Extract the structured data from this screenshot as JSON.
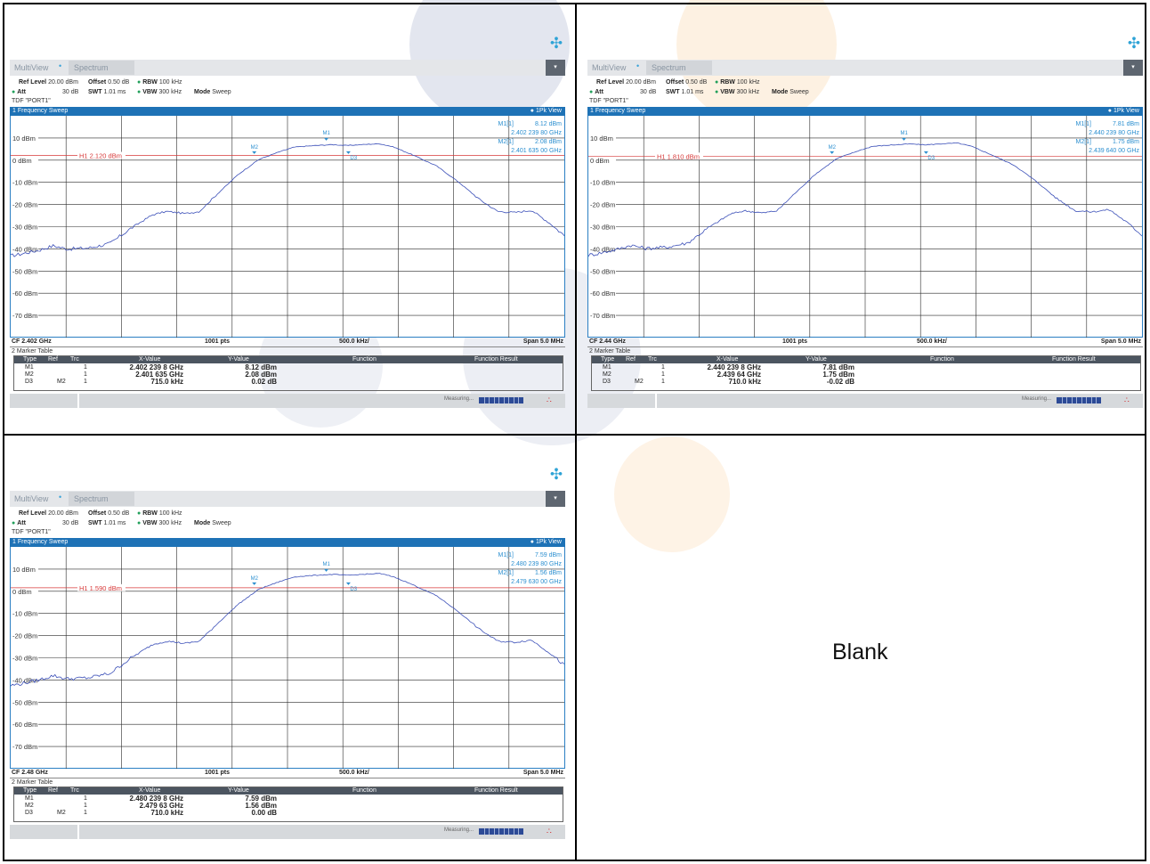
{
  "blank_label": "Blank",
  "colors": {
    "trace": "#3b4fb8",
    "marker": "#2b8fd0",
    "hline": "#d83a3a",
    "header_bar": "#1e72b6",
    "grid": "#2a2a2a"
  },
  "panels": [
    {
      "app": "MultiView",
      "tab": "Spectrum",
      "ref_level": "20.00 dBm",
      "offset": "0.50 dB",
      "rbw": "100 kHz",
      "att": "30 dB",
      "swt": "1.01 ms",
      "vbw": "300 kHz",
      "mode": "Sweep",
      "tdf": "TDF \"PORT1\"",
      "sweep_title": "1 Frequency Sweep",
      "view": "1Pk View",
      "m1_label": "M1[1]",
      "m1_y": "8.12 dBm",
      "m1_x": "2.402 239 80 GHz",
      "m2_label": "M2[1]",
      "m2_y": "2.08 dBm",
      "m2_x": "2.401 635 00 GHz",
      "h1_label": "H1 2.120 dBm",
      "y_ticks": [
        "10 dBm",
        "0 dBm",
        "-10 dBm",
        "-20 dBm",
        "-30 dBm",
        "-40 dBm",
        "-50 dBm",
        "-60 dBm",
        "-70 dBm"
      ],
      "cf": "CF 2.402 GHz",
      "pts": "1001 pts",
      "div": "500.0 kHz/",
      "span": "Span 5.0 MHz",
      "table_title": "2 Marker Table",
      "table_head": [
        "Type",
        "Ref",
        "Trc",
        "X-Value",
        "Y-Value",
        "Function",
        "Function Result"
      ],
      "rows": [
        [
          "M1",
          "",
          "1",
          "2.402 239 8 GHz",
          "8.12 dBm"
        ],
        [
          "M2",
          "",
          "1",
          "2.401 635 GHz",
          "2.08 dBm"
        ],
        [
          "D3",
          "M2",
          "1",
          "715.0 kHz",
          "0.02 dB"
        ]
      ],
      "measuring": "Measuring...",
      "marker_tags": [
        "M1",
        "M2",
        "D3"
      ],
      "trace_level_offset": 0.6
    },
    {
      "app": "MultiView",
      "tab": "Spectrum",
      "ref_level": "20.00 dBm",
      "offset": "0.50 dB",
      "rbw": "100 kHz",
      "att": "30 dB",
      "swt": "1.01 ms",
      "vbw": "300 kHz",
      "mode": "Sweep",
      "tdf": "TDF \"PORT1\"",
      "sweep_title": "1 Frequency Sweep",
      "view": "1Pk View",
      "m1_label": "M1[1]",
      "m1_y": "7.81 dBm",
      "m1_x": "2.440 239 80 GHz",
      "m2_label": "M2[1]",
      "m2_y": "1.75 dBm",
      "m2_x": "2.439 640 00 GHz",
      "h1_label": "H1 1.810 dBm",
      "y_ticks": [
        "10 dBm",
        "0 dBm",
        "-10 dBm",
        "-20 dBm",
        "-30 dBm",
        "-40 dBm",
        "-50 dBm",
        "-60 dBm",
        "-70 dBm"
      ],
      "cf": "CF 2.44 GHz",
      "pts": "1001 pts",
      "div": "500.0 kHz/",
      "span": "Span 5.0 MHz",
      "table_title": "2 Marker Table",
      "table_head": [
        "Type",
        "Ref",
        "Trc",
        "X-Value",
        "Y-Value",
        "Function",
        "Function Result"
      ],
      "rows": [
        [
          "M1",
          "",
          "1",
          "2.440 239 8 GHz",
          "7.81 dBm"
        ],
        [
          "M2",
          "",
          "1",
          "2.439 64 GHz",
          "1.75 dBm"
        ],
        [
          "D3",
          "M2",
          "1",
          "710.0 kHz",
          "-0.02 dB"
        ]
      ],
      "measuring": "Measuring...",
      "marker_tags": [
        "M1",
        "M2",
        "D3"
      ],
      "trace_level_offset": 0.3
    },
    {
      "app": "MultiView",
      "tab": "Spectrum",
      "ref_level": "20.00 dBm",
      "offset": "0.50 dB",
      "rbw": "100 kHz",
      "att": "30 dB",
      "swt": "1.01 ms",
      "vbw": "300 kHz",
      "mode": "Sweep",
      "tdf": "TDF \"PORT1\"",
      "sweep_title": "1 Frequency Sweep",
      "view": "1Pk View",
      "m1_label": "M1[1]",
      "m1_y": "7.59 dBm",
      "m1_x": "2.480 239 80 GHz",
      "m2_label": "M2[1]",
      "m2_y": "1.56 dBm",
      "m2_x": "2.479 630 00 GHz",
      "h1_label": "H1 1.590 dBm",
      "y_ticks": [
        "10 dBm",
        "0 dBm",
        "-10 dBm",
        "-20 dBm",
        "-30 dBm",
        "-40 dBm",
        "-50 dBm",
        "-60 dBm",
        "-70 dBm"
      ],
      "cf": "CF 2.48 GHz",
      "pts": "1001 pts",
      "div": "500.0 kHz/",
      "span": "Span 5.0 MHz",
      "table_title": "2 Marker Table",
      "table_head": [
        "Type",
        "Ref",
        "Trc",
        "X-Value",
        "Y-Value",
        "Function",
        "Function Result"
      ],
      "rows": [
        [
          "M1",
          "",
          "1",
          "2.480 239 8 GHz",
          "7.59 dBm"
        ],
        [
          "M2",
          "",
          "1",
          "2.479 63 GHz",
          "1.56 dBm"
        ],
        [
          "D3",
          "M2",
          "1",
          "710.0 kHz",
          "0.00 dB"
        ]
      ],
      "measuring": "Measuring...",
      "marker_tags": [
        "M1",
        "M2",
        "D3"
      ],
      "trace_level_offset": 0.0
    }
  ]
}
